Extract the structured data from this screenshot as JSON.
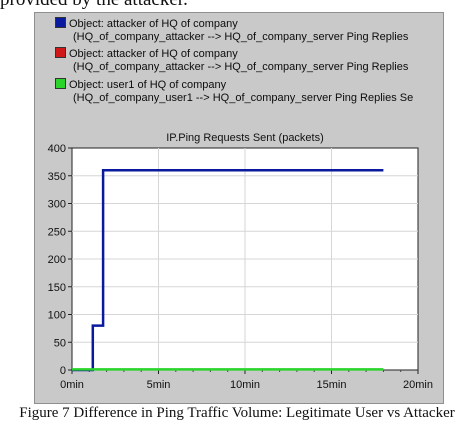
{
  "top_text": "provided by the attacker.",
  "legend": [
    {
      "object": "Object: attacker of HQ of company",
      "detail": "(HQ_of_company_attacker --> HQ_of_company_server Ping Replies",
      "color": "#0a1a9e"
    },
    {
      "object": "Object: attacker of HQ of company",
      "detail": "(HQ_of_company_attacker --> HQ_of_company_server Ping Replies",
      "color": "#d01818"
    },
    {
      "object": "Object: user1 of HQ of company",
      "detail": "(HQ_of_company_user1 --> HQ_of_company_server Ping Replies Se",
      "color": "#2ad42a"
    }
  ],
  "caption": "Figure 7 Difference in Ping Traffic Volume: Legitimate User vs Attacker",
  "chart_data": {
    "type": "line",
    "title": "IP.Ping Requests Sent (packets)",
    "xlabel": "",
    "ylabel": "",
    "x_ticks": [
      "0min",
      "5min",
      "10min",
      "15min",
      "20min"
    ],
    "y_ticks": [
      "0",
      "50",
      "100",
      "150",
      "200",
      "250",
      "300",
      "350",
      "400"
    ],
    "xlim": [
      0,
      20
    ],
    "ylim": [
      0,
      400
    ],
    "grid": true,
    "x_unit": "min",
    "series": [
      {
        "color": "#0a1a9e",
        "step": true,
        "x": [
          0,
          1.2,
          1.2,
          1.8,
          1.8,
          18
        ],
        "y": [
          0,
          0,
          80,
          80,
          360,
          360
        ]
      },
      {
        "color": "#2ad42a",
        "step": false,
        "x": [
          0,
          18
        ],
        "y": [
          1,
          1
        ]
      }
    ]
  }
}
